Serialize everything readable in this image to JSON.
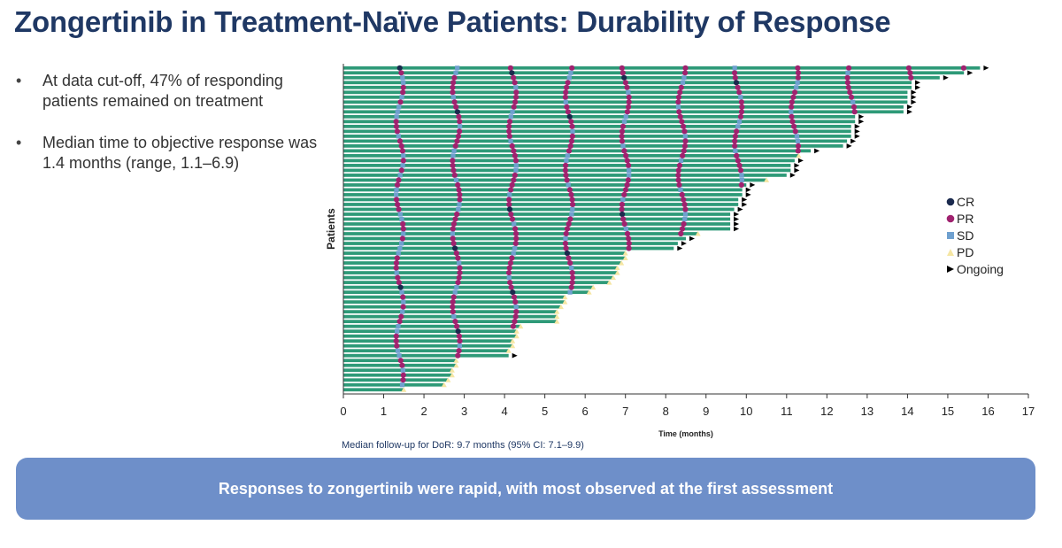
{
  "title": "Zongertinib in Treatment-Naïve Patients: Durability of Response",
  "bullets": [
    "At data cut-off, 47% of responding patients remained on treatment",
    "Median time to objective response was 1.4 months (range, 1.1–6.9)"
  ],
  "footnote": "Median follow-up for DoR: 9.7 months (95% CI: 7.1–9.9)",
  "banner": "Responses to zongertinib were rapid, with most observed at the first assessment",
  "colors": {
    "bar": "#2e9a78",
    "cr": "#1b2a4e",
    "pr": "#a0226f",
    "sd": "#6fa0cf",
    "pd": "#f5e6a3",
    "ongoing": "#000000",
    "title": "#1f3864",
    "banner": "#6e8fc9"
  },
  "chart_data": {
    "type": "swimmer",
    "xlabel": "Time (months)",
    "ylabel": "Patients",
    "xlim": [
      0,
      17
    ],
    "xticks": [
      0,
      1,
      2,
      3,
      4,
      5,
      6,
      7,
      8,
      9,
      10,
      11,
      12,
      13,
      14,
      15,
      16,
      17
    ],
    "legend_position": "right",
    "legend": [
      {
        "key": "cr",
        "label": "CR",
        "shape": "circle"
      },
      {
        "key": "pr",
        "label": "PR",
        "shape": "circle"
      },
      {
        "key": "sd",
        "label": "SD",
        "shape": "square"
      },
      {
        "key": "pd",
        "label": "PD",
        "shape": "triangle"
      },
      {
        "key": "ongoing",
        "label": "Ongoing",
        "shape": "arrow"
      }
    ],
    "patients": [
      {
        "duration": 15.8,
        "ongoing": true
      },
      {
        "duration": 15.4,
        "ongoing": true
      },
      {
        "duration": 14.8,
        "ongoing": true
      },
      {
        "duration": 14.1,
        "ongoing": true
      },
      {
        "duration": 14.1,
        "ongoing": true
      },
      {
        "duration": 14.0,
        "ongoing": true
      },
      {
        "duration": 14.0,
        "ongoing": true
      },
      {
        "duration": 14.0,
        "ongoing": true
      },
      {
        "duration": 13.9,
        "ongoing": true
      },
      {
        "duration": 13.9,
        "ongoing": true
      },
      {
        "duration": 12.7,
        "ongoing": true
      },
      {
        "duration": 12.7,
        "ongoing": true
      },
      {
        "duration": 12.6,
        "ongoing": true
      },
      {
        "duration": 12.6,
        "ongoing": true
      },
      {
        "duration": 12.6,
        "ongoing": true
      },
      {
        "duration": 12.5,
        "ongoing": true
      },
      {
        "duration": 12.4,
        "ongoing": true
      },
      {
        "duration": 11.6,
        "ongoing": true
      },
      {
        "duration": 11.3,
        "ongoing": false
      },
      {
        "duration": 11.2,
        "ongoing": true
      },
      {
        "duration": 11.1,
        "ongoing": true
      },
      {
        "duration": 11.1,
        "ongoing": true
      },
      {
        "duration": 11.0,
        "ongoing": true
      },
      {
        "duration": 10.5,
        "ongoing": false
      },
      {
        "duration": 10.0,
        "ongoing": true
      },
      {
        "duration": 9.9,
        "ongoing": true
      },
      {
        "duration": 9.9,
        "ongoing": true
      },
      {
        "duration": 9.8,
        "ongoing": true
      },
      {
        "duration": 9.8,
        "ongoing": true
      },
      {
        "duration": 9.7,
        "ongoing": true
      },
      {
        "duration": 9.6,
        "ongoing": true
      },
      {
        "duration": 9.6,
        "ongoing": true
      },
      {
        "duration": 9.6,
        "ongoing": true
      },
      {
        "duration": 9.6,
        "ongoing": true
      },
      {
        "duration": 8.8,
        "ongoing": false
      },
      {
        "duration": 8.5,
        "ongoing": true
      },
      {
        "duration": 8.3,
        "ongoing": true
      },
      {
        "duration": 8.2,
        "ongoing": true
      },
      {
        "duration": 7.0,
        "ongoing": false
      },
      {
        "duration": 7.0,
        "ongoing": false
      },
      {
        "duration": 6.9,
        "ongoing": false
      },
      {
        "duration": 6.8,
        "ongoing": false
      },
      {
        "duration": 6.8,
        "ongoing": false
      },
      {
        "duration": 6.7,
        "ongoing": false
      },
      {
        "duration": 6.6,
        "ongoing": false
      },
      {
        "duration": 6.2,
        "ongoing": false
      },
      {
        "duration": 6.1,
        "ongoing": false
      },
      {
        "duration": 5.5,
        "ongoing": false
      },
      {
        "duration": 5.5,
        "ongoing": false
      },
      {
        "duration": 5.4,
        "ongoing": false
      },
      {
        "duration": 5.3,
        "ongoing": false
      },
      {
        "duration": 5.3,
        "ongoing": false
      },
      {
        "duration": 5.3,
        "ongoing": false
      },
      {
        "duration": 4.4,
        "ongoing": false
      },
      {
        "duration": 4.3,
        "ongoing": false
      },
      {
        "duration": 4.3,
        "ongoing": false
      },
      {
        "duration": 4.2,
        "ongoing": false
      },
      {
        "duration": 4.2,
        "ongoing": false
      },
      {
        "duration": 4.1,
        "ongoing": false
      },
      {
        "duration": 4.1,
        "ongoing": true
      },
      {
        "duration": 2.8,
        "ongoing": false
      },
      {
        "duration": 2.8,
        "ongoing": false
      },
      {
        "duration": 2.7,
        "ongoing": false
      },
      {
        "duration": 2.7,
        "ongoing": false
      },
      {
        "duration": 2.6,
        "ongoing": false
      },
      {
        "duration": 2.5,
        "ongoing": false
      },
      {
        "duration": 1.5,
        "ongoing": false
      }
    ]
  }
}
